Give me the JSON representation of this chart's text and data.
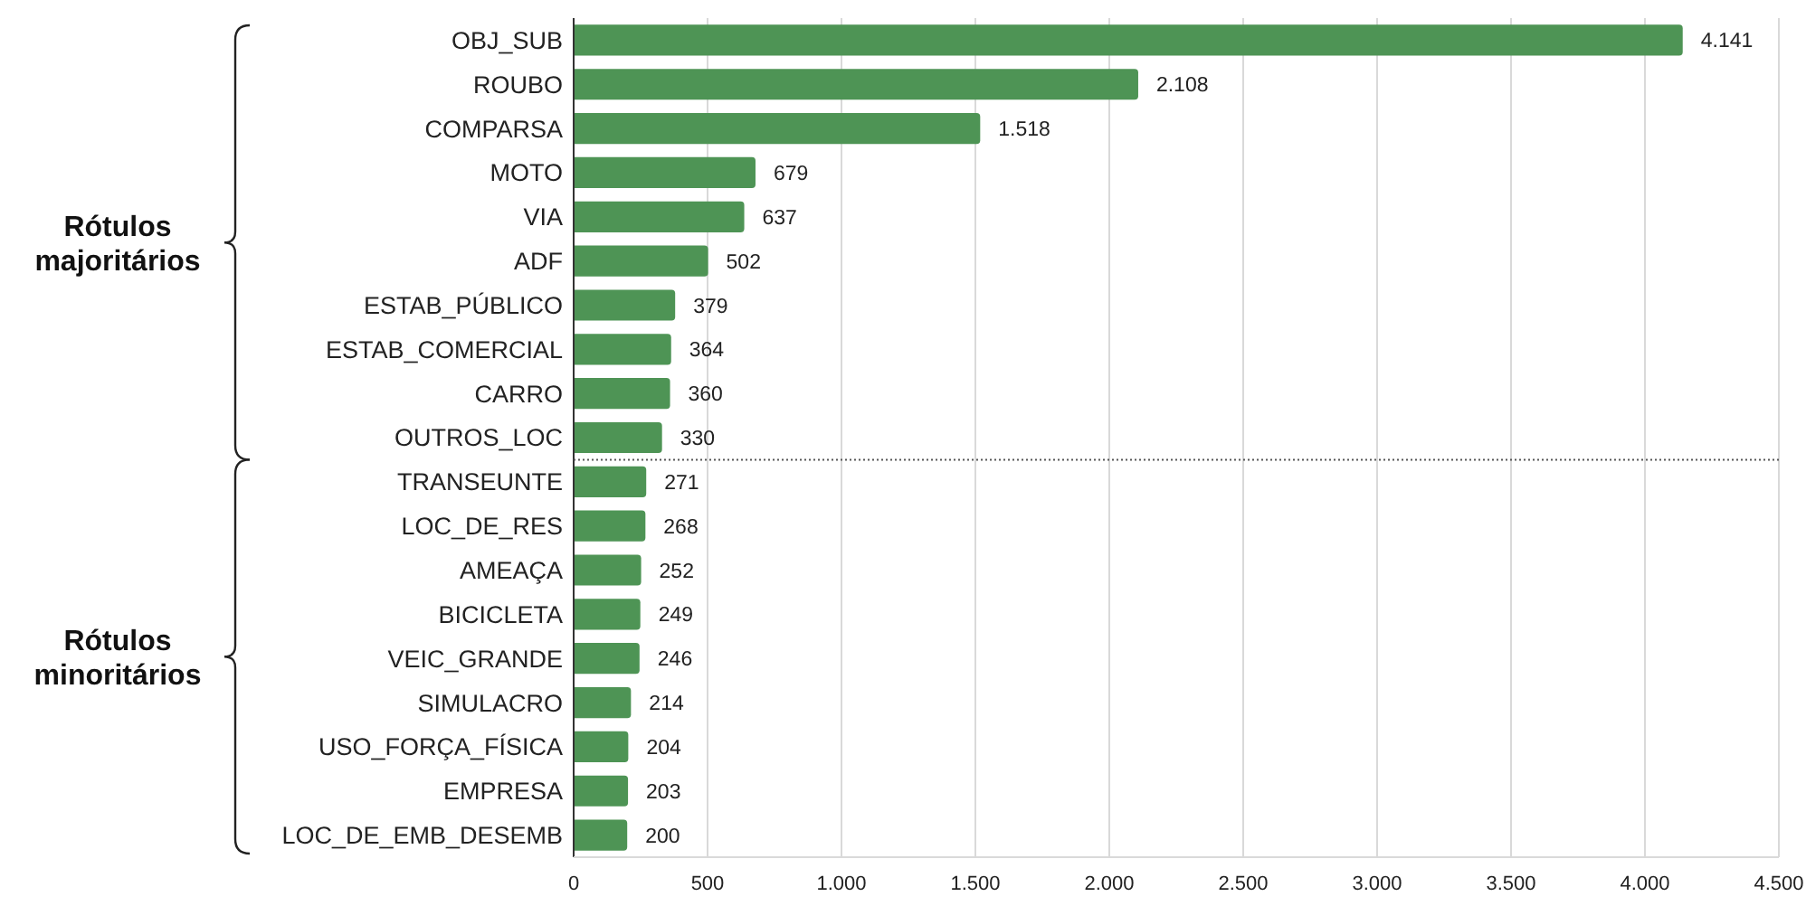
{
  "chart_data": {
    "type": "bar",
    "orientation": "horizontal",
    "categories": [
      "OBJ_SUB",
      "ROUBO",
      "COMPARSA",
      "MOTO",
      "VIA",
      "ADF",
      "ESTAB_PÚBLICO",
      "ESTAB_COMERCIAL",
      "CARRO",
      "OUTROS_LOC",
      "TRANSEUNTE",
      "LOC_DE_RES",
      "AMEAÇA",
      "BICICLETA",
      "VEIC_GRANDE",
      "SIMULACRO",
      "USO_FORÇA_FÍSICA",
      "EMPRESA",
      "LOC_DE_EMB_DESEMB"
    ],
    "values": [
      4141,
      2108,
      1518,
      679,
      637,
      502,
      379,
      364,
      360,
      330,
      271,
      268,
      252,
      249,
      246,
      214,
      204,
      203,
      200
    ],
    "value_labels": [
      "4.141",
      "2.108",
      "1.518",
      "679",
      "637",
      "502",
      "379",
      "364",
      "360",
      "330",
      "271",
      "268",
      "252",
      "249",
      "246",
      "214",
      "204",
      "203",
      "200"
    ],
    "color": "#4e9455",
    "xlim": [
      0,
      4500
    ],
    "xticks": [
      0,
      500,
      {
        "value": 1000,
        "label": "1.000"
      },
      {
        "value": 1500,
        "label": "1.500"
      },
      {
        "value": 2000,
        "label": "2.000"
      },
      {
        "value": 2500,
        "label": "2.500"
      },
      {
        "value": 3000,
        "label": "3.000"
      },
      {
        "value": 3500,
        "label": "3.500"
      },
      {
        "value": 4000,
        "label": "4.000"
      },
      {
        "value": 4500,
        "label": "4.500"
      }
    ],
    "grid": "x",
    "ref_lines": [
      {
        "axis": "y",
        "value": "OUTROS_LOC",
        "color": "#555555",
        "line_style": "dotted"
      }
    ],
    "annotations": [
      "Rótulos majoritários",
      "Rótulos minoritários"
    ]
  }
}
